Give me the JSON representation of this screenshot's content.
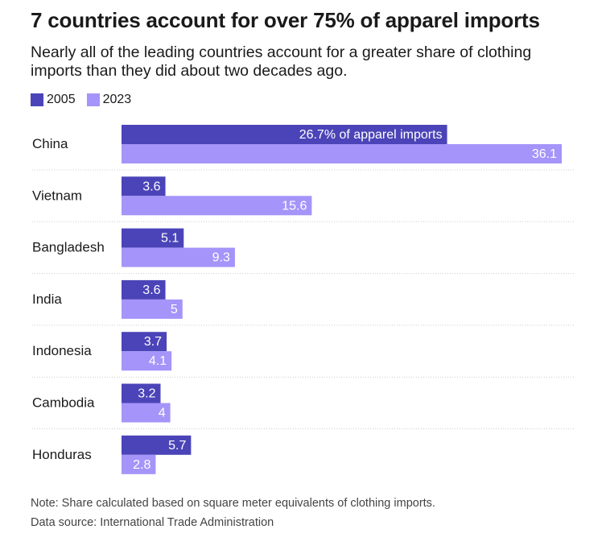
{
  "title": "7 countries account for over 75% of apparel imports",
  "subtitle": "Nearly all of the leading countries account for a greater share of clothing imports than they did about two decades ago.",
  "colors": {
    "s2005": "#4b44b8",
    "s2023": "#a594f9",
    "label": "#ffffff",
    "divider": "#cccccc"
  },
  "legend": [
    {
      "name": "2005",
      "color": "#4b44b8"
    },
    {
      "name": "2023",
      "color": "#a594f9"
    }
  ],
  "chart_data": {
    "type": "bar",
    "orientation": "horizontal",
    "categories": [
      "China",
      "Vietnam",
      "Bangladesh",
      "India",
      "Indonesia",
      "Cambodia",
      "Honduras"
    ],
    "series": [
      {
        "name": "2005",
        "values": [
          26.7,
          3.6,
          5.1,
          3.6,
          3.7,
          3.2,
          5.7
        ],
        "labels": [
          "26.7% of apparel imports",
          "3.6",
          "5.1",
          "3.6",
          "3.7",
          "3.2",
          "5.7"
        ]
      },
      {
        "name": "2023",
        "values": [
          36.1,
          15.6,
          9.3,
          5,
          4.1,
          4,
          2.8
        ],
        "labels": [
          "36.1",
          "15.6",
          "9.3",
          "5",
          "4.1",
          "4",
          "2.8"
        ]
      }
    ],
    "xlim": [
      0,
      36.1
    ],
    "legend_position": "top-left",
    "grid": false
  },
  "notes": {
    "note": "Note: Share calculated based on square meter equivalents of clothing imports.",
    "source": "Data source: International Trade Administration"
  }
}
